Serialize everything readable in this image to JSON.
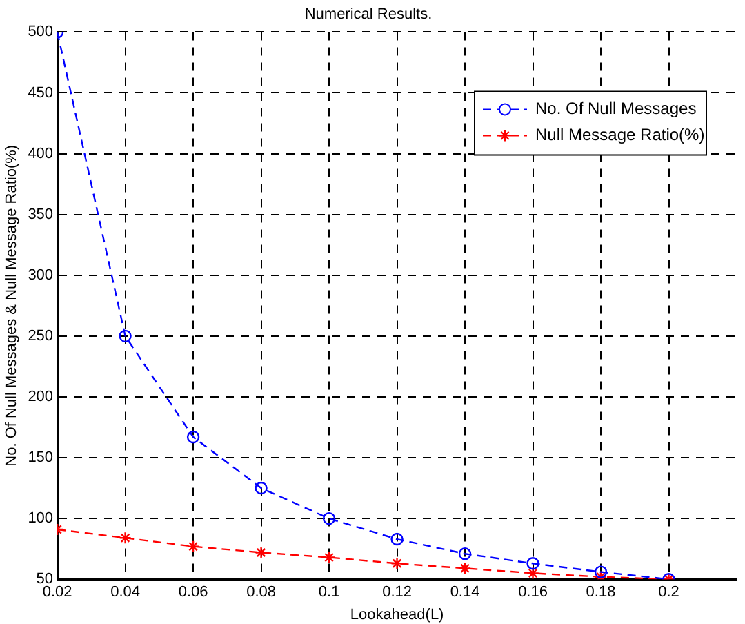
{
  "chart_data": {
    "type": "line",
    "title": "Numerical Results.",
    "xlabel": "Lookahead(L)",
    "ylabel": "No. Of Null Messages & Null Message Ratio(%)",
    "x": [
      0.02,
      0.04,
      0.06,
      0.08,
      0.1,
      0.12,
      0.14,
      0.16,
      0.18,
      0.2
    ],
    "series": [
      {
        "name": "No. Of Null Messages",
        "color": "#0000ff",
        "marker": "circle",
        "values": [
          500,
          250,
          167,
          125,
          100,
          83,
          71,
          63,
          56,
          50
        ]
      },
      {
        "name": "Null Message Ratio(%)",
        "color": "#ff0000",
        "marker": "cross",
        "values": [
          91,
          84,
          77,
          72,
          68,
          63,
          59,
          55,
          52,
          50
        ]
      }
    ],
    "xlim": [
      0.02,
      0.22
    ],
    "xticks": [
      0.02,
      0.04,
      0.06,
      0.08,
      0.1,
      0.12,
      0.14,
      0.16,
      0.18,
      0.2
    ],
    "ylim": [
      50,
      500
    ],
    "yticks": [
      50,
      100,
      150,
      200,
      250,
      300,
      350,
      400,
      450,
      500
    ],
    "grid": true,
    "legend": "top right",
    "line_style": "dashed"
  }
}
